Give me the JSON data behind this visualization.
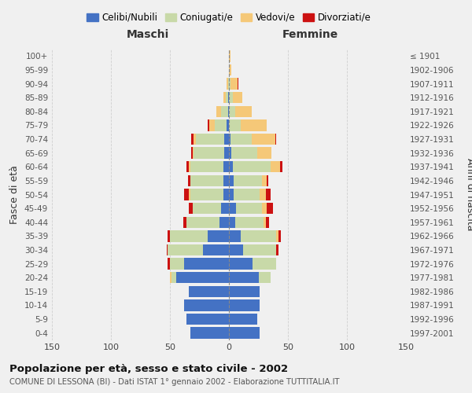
{
  "age_groups": [
    "0-4",
    "5-9",
    "10-14",
    "15-19",
    "20-24",
    "25-29",
    "30-34",
    "35-39",
    "40-44",
    "45-49",
    "50-54",
    "55-59",
    "60-64",
    "65-69",
    "70-74",
    "75-79",
    "80-84",
    "85-89",
    "90-94",
    "95-99",
    "100+"
  ],
  "birth_years": [
    "1997-2001",
    "1992-1996",
    "1987-1991",
    "1982-1986",
    "1977-1981",
    "1972-1976",
    "1967-1971",
    "1962-1966",
    "1957-1961",
    "1952-1956",
    "1947-1951",
    "1942-1946",
    "1937-1941",
    "1932-1936",
    "1927-1931",
    "1922-1926",
    "1917-1921",
    "1912-1916",
    "1907-1911",
    "1902-1906",
    "≤ 1901"
  ],
  "maschi": {
    "celibi": [
      33,
      36,
      38,
      34,
      45,
      38,
      22,
      18,
      8,
      7,
      5,
      5,
      5,
      4,
      4,
      2,
      1,
      1,
      0,
      0,
      0
    ],
    "coniugati": [
      0,
      0,
      0,
      0,
      4,
      12,
      30,
      32,
      28,
      24,
      28,
      28,
      28,
      26,
      24,
      10,
      6,
      2,
      1,
      0,
      0
    ],
    "vedovi": [
      0,
      0,
      0,
      0,
      1,
      0,
      0,
      0,
      0,
      0,
      1,
      0,
      1,
      1,
      2,
      5,
      4,
      2,
      1,
      0,
      0
    ],
    "divorziati": [
      0,
      0,
      0,
      0,
      0,
      2,
      1,
      2,
      3,
      3,
      4,
      2,
      2,
      1,
      2,
      1,
      0,
      0,
      0,
      0,
      0
    ]
  },
  "femmine": {
    "nubili": [
      26,
      24,
      26,
      26,
      25,
      20,
      12,
      10,
      5,
      6,
      4,
      4,
      3,
      2,
      1,
      0,
      0,
      0,
      0,
      0,
      0
    ],
    "coniugate": [
      0,
      0,
      0,
      0,
      10,
      20,
      28,
      30,
      24,
      22,
      22,
      24,
      32,
      22,
      18,
      10,
      5,
      3,
      1,
      0,
      0
    ],
    "vedove": [
      0,
      0,
      0,
      0,
      0,
      0,
      0,
      2,
      2,
      4,
      5,
      4,
      8,
      12,
      20,
      22,
      14,
      8,
      6,
      2,
      1
    ],
    "divorziate": [
      0,
      0,
      0,
      0,
      0,
      0,
      2,
      2,
      3,
      5,
      4,
      1,
      2,
      0,
      1,
      0,
      0,
      0,
      1,
      0,
      0
    ]
  },
  "colors": {
    "celibi_nubili": "#4472c4",
    "coniugati_e": "#c8d9a8",
    "vedovi_e": "#f5c878",
    "divorziati_e": "#cc1111"
  },
  "xlim": 150,
  "title": "Popolazione per età, sesso e stato civile - 2002",
  "subtitle": "COMUNE DI LESSONA (BI) - Dati ISTAT 1° gennaio 2002 - Elaborazione TUTTITALIA.IT",
  "ylabel_left": "Fasce di età",
  "ylabel_right": "Anni di nascita",
  "xlabel_maschi": "Maschi",
  "xlabel_femmine": "Femmine",
  "background_color": "#f0f0f0",
  "grid_color": "#cccccc"
}
